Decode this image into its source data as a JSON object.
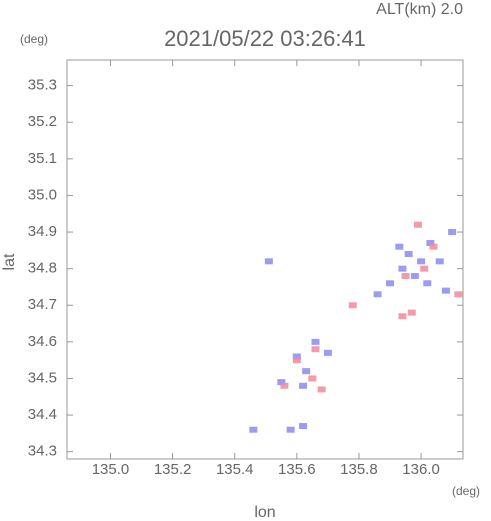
{
  "chart_data": {
    "type": "scatter",
    "title": "2021/05/22 03:26:41",
    "subtitle": "ALT(km) 2.0",
    "y_unit": "(deg)",
    "x_unit": "(deg)",
    "xlabel": "lon",
    "ylabel": "lat",
    "xlim": [
      134.86,
      136.135
    ],
    "ylim": [
      34.28,
      35.37
    ],
    "xticks": [
      {
        "value": 135,
        "label": "135.0"
      },
      135.2,
      135.4,
      135.6,
      135.8,
      {
        "value": 136,
        "label": "136.0"
      }
    ],
    "yticks": [
      34.3,
      34.4,
      34.5,
      34.6,
      34.7,
      34.8,
      34.9,
      {
        "value": 35,
        "label": "35.0"
      },
      35.1,
      35.2,
      35.3
    ],
    "series": [
      {
        "color": "#8a8af0",
        "x": [
          135.51,
          135.55,
          135.6,
          135.62,
          135.63,
          135.66,
          135.7,
          135.58,
          135.62,
          135.46,
          135.93,
          135.96,
          136.0,
          136.03,
          136.06,
          136.1,
          135.94,
          135.98,
          136.02,
          136.08,
          135.9,
          135.86
        ],
        "values": [
          34.82,
          34.49,
          34.56,
          34.48,
          34.52,
          34.6,
          34.57,
          34.36,
          34.37,
          34.36,
          34.86,
          34.84,
          34.82,
          34.87,
          34.82,
          34.9,
          34.8,
          34.78,
          34.76,
          34.74,
          34.76,
          34.73
        ]
      },
      {
        "color": "#f08a9a",
        "x": [
          135.56,
          135.6,
          135.65,
          135.66,
          135.68,
          135.78,
          135.95,
          135.97,
          135.99,
          136.01,
          135.94,
          136.12,
          136.04
        ],
        "values": [
          34.48,
          34.55,
          34.5,
          34.58,
          34.47,
          34.7,
          34.78,
          34.68,
          34.92,
          34.8,
          34.67,
          34.73,
          34.86
        ]
      }
    ]
  }
}
